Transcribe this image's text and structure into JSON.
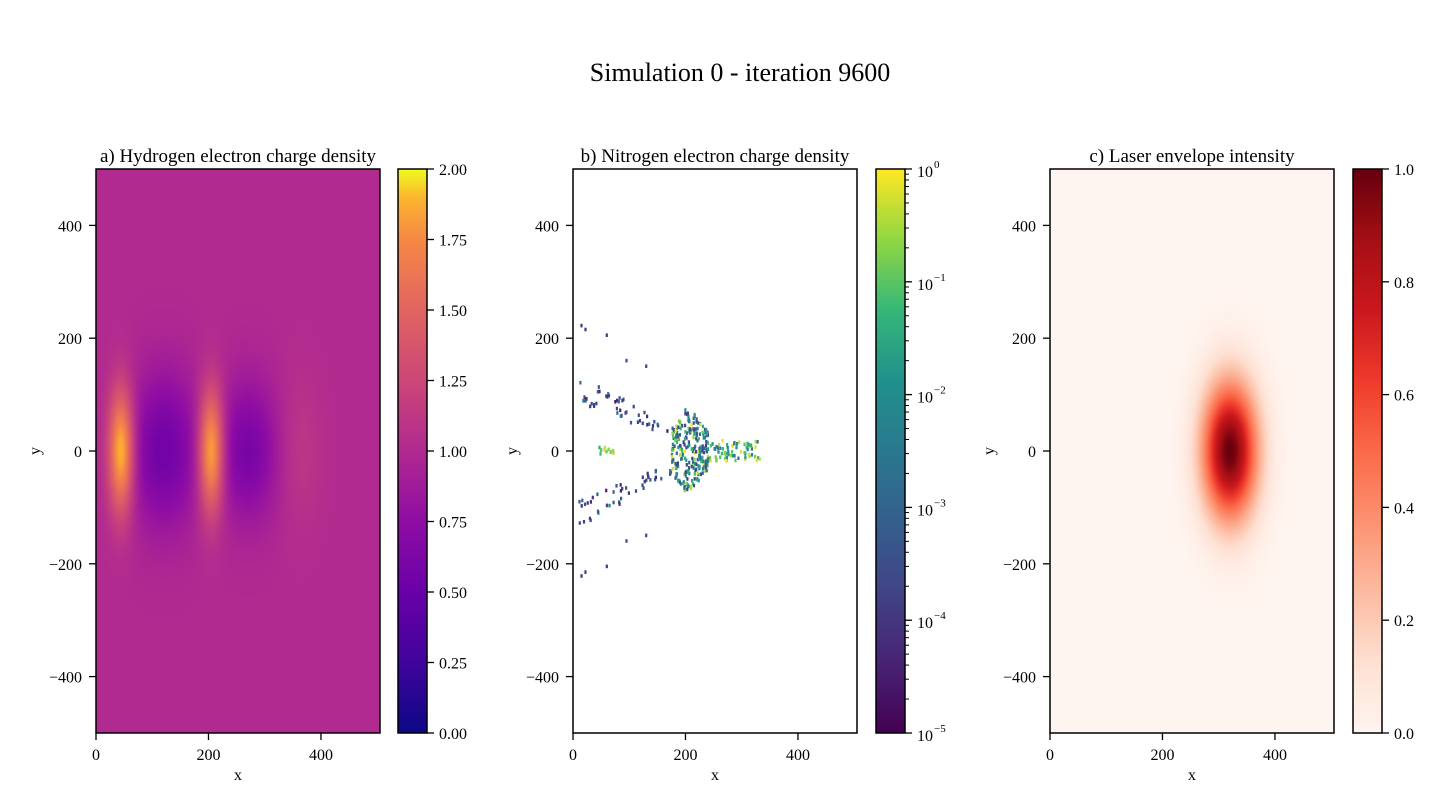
{
  "figure": {
    "suptitle": "Simulation 0 - iteration 9600"
  },
  "chart_data": [
    {
      "type": "heatmap",
      "title": "a) Hydrogen electron charge density",
      "xlabel": "x",
      "ylabel": "y",
      "xlim": [
        0,
        505
      ],
      "ylim": [
        -500,
        500
      ],
      "x_ticks": [
        0,
        200,
        400
      ],
      "x_tick_labels": [
        "0",
        "200",
        "400"
      ],
      "y_ticks": [
        -400,
        -200,
        0,
        200,
        400
      ],
      "y_tick_labels": [
        "−400",
        "−200",
        "0",
        "200",
        "400"
      ],
      "colormap": "plasma",
      "colorbar": {
        "scale": "linear",
        "range": [
          0,
          2
        ],
        "ticks": [
          0,
          0.25,
          0.5,
          0.75,
          1.0,
          1.25,
          1.5,
          1.75,
          2.0
        ],
        "tick_labels": [
          "0.00",
          "0.25",
          "0.50",
          "0.75",
          "1.00",
          "1.25",
          "1.50",
          "1.75",
          "2.00"
        ]
      },
      "background_value": 1.0,
      "features": [
        {
          "kind": "crest",
          "x": 45,
          "y": 0,
          "peak": 2.0,
          "sx": 16,
          "sy": 78
        },
        {
          "kind": "trough",
          "x": 120,
          "y": 0,
          "peak": 0.55,
          "sx": 45,
          "sy": 95
        },
        {
          "kind": "crest",
          "x": 205,
          "y": 0,
          "peak": 2.0,
          "sx": 16,
          "sy": 78
        },
        {
          "kind": "trough",
          "x": 270,
          "y": 0,
          "peak": 0.6,
          "sx": 40,
          "sy": 85
        },
        {
          "kind": "crest",
          "x": 360,
          "y": 0,
          "peak": 1.12,
          "sx": 30,
          "sy": 95
        }
      ]
    },
    {
      "type": "scatter",
      "title": "b) Nitrogen electron charge density",
      "xlabel": "x",
      "ylabel": "y",
      "xlim": [
        0,
        505
      ],
      "ylim": [
        -500,
        500
      ],
      "x_ticks": [
        0,
        200,
        400
      ],
      "x_tick_labels": [
        "0",
        "200",
        "400"
      ],
      "y_ticks": [
        -400,
        -200,
        0,
        200,
        400
      ],
      "y_tick_labels": [
        "−400",
        "−200",
        "0",
        "200",
        "400"
      ],
      "colormap": "viridis",
      "colorbar": {
        "scale": "log",
        "range": [
          1e-05,
          1
        ],
        "ticks": [
          1e-05,
          0.0001,
          0.001,
          0.01,
          0.1,
          1
        ],
        "tick_labels": [
          {
            "base": "10",
            "exp": "−5"
          },
          {
            "base": "10",
            "exp": "−4"
          },
          {
            "base": "10",
            "exp": "−3"
          },
          {
            "base": "10",
            "exp": "−2"
          },
          {
            "base": "10",
            "exp": "−1"
          },
          {
            "base": "10",
            "exp": "0"
          }
        ]
      },
      "cluster": {
        "core_x": [
          175,
          240
        ],
        "core_y": [
          -80,
          80
        ],
        "tail_x": [
          240,
          335
        ],
        "tail_y": [
          -18,
          18
        ],
        "left_group_x": [
          45,
          75
        ],
        "left_group_y": [
          -6,
          6
        ]
      },
      "wings": [
        {
          "x0": 10,
          "y0": 130,
          "x1": 200,
          "y1": 20
        },
        {
          "x0": 10,
          "y0": 95,
          "x1": 150,
          "y1": 40
        },
        {
          "x0": 10,
          "y0": -130,
          "x1": 200,
          "y1": -20
        },
        {
          "x0": 10,
          "y0": -95,
          "x1": 150,
          "y1": -40
        }
      ],
      "isolated_points": [
        {
          "x": 15,
          "y": 222,
          "v": 0.0001
        },
        {
          "x": 22,
          "y": 215,
          "v": 0.0001
        },
        {
          "x": 60,
          "y": 205,
          "v": 0.0001
        },
        {
          "x": 15,
          "y": -222,
          "v": 0.0001
        },
        {
          "x": 22,
          "y": -215,
          "v": 0.0001
        },
        {
          "x": 60,
          "y": -205,
          "v": 0.0001
        },
        {
          "x": 95,
          "y": 160,
          "v": 0.0003
        },
        {
          "x": 130,
          "y": 150,
          "v": 0.0002
        },
        {
          "x": 95,
          "y": -160,
          "v": 0.0003
        },
        {
          "x": 130,
          "y": -150,
          "v": 0.0002
        }
      ]
    },
    {
      "type": "heatmap",
      "title": "c) Laser envelope intensity",
      "xlabel": "x",
      "ylabel": "y",
      "xlim": [
        0,
        505
      ],
      "ylim": [
        -500,
        500
      ],
      "x_ticks": [
        0,
        200,
        400
      ],
      "x_tick_labels": [
        "0",
        "200",
        "400"
      ],
      "y_ticks": [
        -400,
        -200,
        0,
        200,
        400
      ],
      "y_tick_labels": [
        "−400",
        "−200",
        "0",
        "200",
        "400"
      ],
      "colormap": "Reds",
      "colorbar": {
        "scale": "linear",
        "range": [
          0,
          1
        ],
        "ticks": [
          0,
          0.2,
          0.4,
          0.6,
          0.8,
          1.0
        ],
        "tick_labels": [
          "0.0",
          "0.2",
          "0.4",
          "0.6",
          "0.8",
          "1.0"
        ]
      },
      "pulse": {
        "x": 320,
        "y": 0,
        "sx": 34,
        "sy": 85,
        "peak": 1.0
      }
    }
  ]
}
